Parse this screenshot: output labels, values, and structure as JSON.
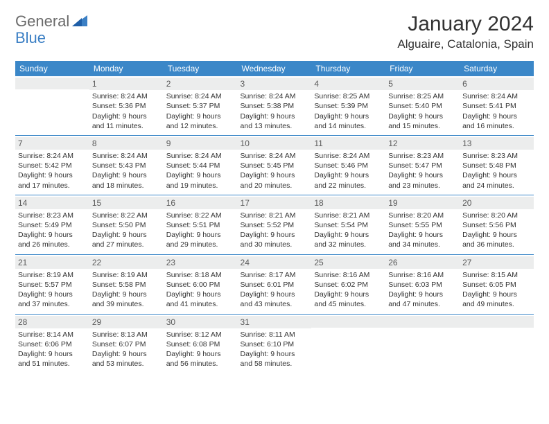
{
  "logo": {
    "general": "General",
    "blue": "Blue"
  },
  "title": "January 2024",
  "location": "Alguaire, Catalonia, Spain",
  "colors": {
    "header_bg": "#3b87c8",
    "header_text": "#ffffff",
    "daynum_bg": "#eceded",
    "border": "#3b87c8",
    "text": "#333333",
    "logo_gray": "#6a6a6a",
    "logo_blue": "#3b7fc4"
  },
  "weekdays": [
    "Sunday",
    "Monday",
    "Tuesday",
    "Wednesday",
    "Thursday",
    "Friday",
    "Saturday"
  ],
  "weeks": [
    [
      {
        "day": "",
        "sunrise": "",
        "sunset": "",
        "daylight1": "",
        "daylight2": ""
      },
      {
        "day": "1",
        "sunrise": "Sunrise: 8:24 AM",
        "sunset": "Sunset: 5:36 PM",
        "daylight1": "Daylight: 9 hours",
        "daylight2": "and 11 minutes."
      },
      {
        "day": "2",
        "sunrise": "Sunrise: 8:24 AM",
        "sunset": "Sunset: 5:37 PM",
        "daylight1": "Daylight: 9 hours",
        "daylight2": "and 12 minutes."
      },
      {
        "day": "3",
        "sunrise": "Sunrise: 8:24 AM",
        "sunset": "Sunset: 5:38 PM",
        "daylight1": "Daylight: 9 hours",
        "daylight2": "and 13 minutes."
      },
      {
        "day": "4",
        "sunrise": "Sunrise: 8:25 AM",
        "sunset": "Sunset: 5:39 PM",
        "daylight1": "Daylight: 9 hours",
        "daylight2": "and 14 minutes."
      },
      {
        "day": "5",
        "sunrise": "Sunrise: 8:25 AM",
        "sunset": "Sunset: 5:40 PM",
        "daylight1": "Daylight: 9 hours",
        "daylight2": "and 15 minutes."
      },
      {
        "day": "6",
        "sunrise": "Sunrise: 8:24 AM",
        "sunset": "Sunset: 5:41 PM",
        "daylight1": "Daylight: 9 hours",
        "daylight2": "and 16 minutes."
      }
    ],
    [
      {
        "day": "7",
        "sunrise": "Sunrise: 8:24 AM",
        "sunset": "Sunset: 5:42 PM",
        "daylight1": "Daylight: 9 hours",
        "daylight2": "and 17 minutes."
      },
      {
        "day": "8",
        "sunrise": "Sunrise: 8:24 AM",
        "sunset": "Sunset: 5:43 PM",
        "daylight1": "Daylight: 9 hours",
        "daylight2": "and 18 minutes."
      },
      {
        "day": "9",
        "sunrise": "Sunrise: 8:24 AM",
        "sunset": "Sunset: 5:44 PM",
        "daylight1": "Daylight: 9 hours",
        "daylight2": "and 19 minutes."
      },
      {
        "day": "10",
        "sunrise": "Sunrise: 8:24 AM",
        "sunset": "Sunset: 5:45 PM",
        "daylight1": "Daylight: 9 hours",
        "daylight2": "and 20 minutes."
      },
      {
        "day": "11",
        "sunrise": "Sunrise: 8:24 AM",
        "sunset": "Sunset: 5:46 PM",
        "daylight1": "Daylight: 9 hours",
        "daylight2": "and 22 minutes."
      },
      {
        "day": "12",
        "sunrise": "Sunrise: 8:23 AM",
        "sunset": "Sunset: 5:47 PM",
        "daylight1": "Daylight: 9 hours",
        "daylight2": "and 23 minutes."
      },
      {
        "day": "13",
        "sunrise": "Sunrise: 8:23 AM",
        "sunset": "Sunset: 5:48 PM",
        "daylight1": "Daylight: 9 hours",
        "daylight2": "and 24 minutes."
      }
    ],
    [
      {
        "day": "14",
        "sunrise": "Sunrise: 8:23 AM",
        "sunset": "Sunset: 5:49 PM",
        "daylight1": "Daylight: 9 hours",
        "daylight2": "and 26 minutes."
      },
      {
        "day": "15",
        "sunrise": "Sunrise: 8:22 AM",
        "sunset": "Sunset: 5:50 PM",
        "daylight1": "Daylight: 9 hours",
        "daylight2": "and 27 minutes."
      },
      {
        "day": "16",
        "sunrise": "Sunrise: 8:22 AM",
        "sunset": "Sunset: 5:51 PM",
        "daylight1": "Daylight: 9 hours",
        "daylight2": "and 29 minutes."
      },
      {
        "day": "17",
        "sunrise": "Sunrise: 8:21 AM",
        "sunset": "Sunset: 5:52 PM",
        "daylight1": "Daylight: 9 hours",
        "daylight2": "and 30 minutes."
      },
      {
        "day": "18",
        "sunrise": "Sunrise: 8:21 AM",
        "sunset": "Sunset: 5:54 PM",
        "daylight1": "Daylight: 9 hours",
        "daylight2": "and 32 minutes."
      },
      {
        "day": "19",
        "sunrise": "Sunrise: 8:20 AM",
        "sunset": "Sunset: 5:55 PM",
        "daylight1": "Daylight: 9 hours",
        "daylight2": "and 34 minutes."
      },
      {
        "day": "20",
        "sunrise": "Sunrise: 8:20 AM",
        "sunset": "Sunset: 5:56 PM",
        "daylight1": "Daylight: 9 hours",
        "daylight2": "and 36 minutes."
      }
    ],
    [
      {
        "day": "21",
        "sunrise": "Sunrise: 8:19 AM",
        "sunset": "Sunset: 5:57 PM",
        "daylight1": "Daylight: 9 hours",
        "daylight2": "and 37 minutes."
      },
      {
        "day": "22",
        "sunrise": "Sunrise: 8:19 AM",
        "sunset": "Sunset: 5:58 PM",
        "daylight1": "Daylight: 9 hours",
        "daylight2": "and 39 minutes."
      },
      {
        "day": "23",
        "sunrise": "Sunrise: 8:18 AM",
        "sunset": "Sunset: 6:00 PM",
        "daylight1": "Daylight: 9 hours",
        "daylight2": "and 41 minutes."
      },
      {
        "day": "24",
        "sunrise": "Sunrise: 8:17 AM",
        "sunset": "Sunset: 6:01 PM",
        "daylight1": "Daylight: 9 hours",
        "daylight2": "and 43 minutes."
      },
      {
        "day": "25",
        "sunrise": "Sunrise: 8:16 AM",
        "sunset": "Sunset: 6:02 PM",
        "daylight1": "Daylight: 9 hours",
        "daylight2": "and 45 minutes."
      },
      {
        "day": "26",
        "sunrise": "Sunrise: 8:16 AM",
        "sunset": "Sunset: 6:03 PM",
        "daylight1": "Daylight: 9 hours",
        "daylight2": "and 47 minutes."
      },
      {
        "day": "27",
        "sunrise": "Sunrise: 8:15 AM",
        "sunset": "Sunset: 6:05 PM",
        "daylight1": "Daylight: 9 hours",
        "daylight2": "and 49 minutes."
      }
    ],
    [
      {
        "day": "28",
        "sunrise": "Sunrise: 8:14 AM",
        "sunset": "Sunset: 6:06 PM",
        "daylight1": "Daylight: 9 hours",
        "daylight2": "and 51 minutes."
      },
      {
        "day": "29",
        "sunrise": "Sunrise: 8:13 AM",
        "sunset": "Sunset: 6:07 PM",
        "daylight1": "Daylight: 9 hours",
        "daylight2": "and 53 minutes."
      },
      {
        "day": "30",
        "sunrise": "Sunrise: 8:12 AM",
        "sunset": "Sunset: 6:08 PM",
        "daylight1": "Daylight: 9 hours",
        "daylight2": "and 56 minutes."
      },
      {
        "day": "31",
        "sunrise": "Sunrise: 8:11 AM",
        "sunset": "Sunset: 6:10 PM",
        "daylight1": "Daylight: 9 hours",
        "daylight2": "and 58 minutes."
      },
      {
        "day": "",
        "sunrise": "",
        "sunset": "",
        "daylight1": "",
        "daylight2": ""
      },
      {
        "day": "",
        "sunrise": "",
        "sunset": "",
        "daylight1": "",
        "daylight2": ""
      },
      {
        "day": "",
        "sunrise": "",
        "sunset": "",
        "daylight1": "",
        "daylight2": ""
      }
    ]
  ]
}
